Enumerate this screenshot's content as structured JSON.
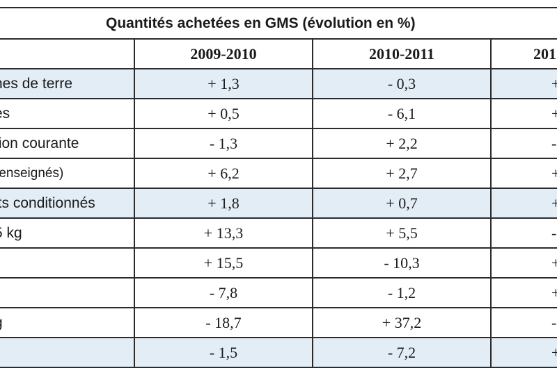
{
  "table": {
    "title": "Quantités achetées en GMS (évolution en %)",
    "periods": [
      "2009-2010",
      "2010-2011",
      "201"
    ],
    "rows": [
      {
        "label": "nes de terre",
        "values": [
          "+ 1,3",
          "- 0,3",
          "+"
        ],
        "shaded": true
      },
      {
        "label": "es",
        "values": [
          "+ 0,5",
          "- 6,1",
          "+"
        ],
        "shaded": false
      },
      {
        "label": "tion courante",
        "values": [
          "- 1,3",
          "+ 2,2",
          "-"
        ],
        "shaded": false
      },
      {
        "label": " renseignés)",
        "values": [
          "+ 6,2",
          "+ 2,7",
          "+"
        ],
        "shaded": false
      },
      {
        "label": "its conditionnés",
        "values": [
          "+ 1,8",
          "+ 0,7",
          "+"
        ],
        "shaded": true
      },
      {
        "label": "5 kg",
        "values": [
          "+ 13,3",
          "+ 5,5",
          "-"
        ],
        "shaded": false
      },
      {
        "label": "",
        "values": [
          "+ 15,5",
          "- 10,3",
          "+"
        ],
        "shaded": false
      },
      {
        "label": "",
        "values": [
          "- 7,8",
          "- 1,2",
          "+"
        ],
        "shaded": false
      },
      {
        "label": "g",
        "values": [
          "- 18,7",
          "+ 37,2",
          "-"
        ],
        "shaded": false
      },
      {
        "label": "",
        "values": [
          "- 1,5",
          "- 7,2",
          "+"
        ],
        "shaded": true
      }
    ]
  },
  "colors": {
    "shade": "#e3edf6",
    "border": "#2b2b2b",
    "text": "#1a1a1a"
  }
}
